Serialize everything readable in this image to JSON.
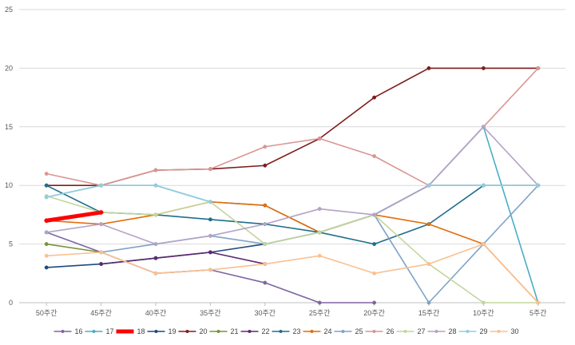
{
  "chart_data": {
    "type": "line",
    "title": "",
    "xlabel": "",
    "ylabel": "",
    "categories": [
      "50주간",
      "45주간",
      "40주간",
      "35주간",
      "30주간",
      "25주간",
      "20주간",
      "15주간",
      "10주간",
      "5주간"
    ],
    "ylim": [
      0,
      25
    ],
    "yticks": [
      "0",
      "5",
      "10",
      "15",
      "20",
      "25"
    ],
    "grid": "horizontal",
    "legend_position": "bottom",
    "series": [
      {
        "name": "16",
        "color": "#8064a2",
        "values": [
          6,
          4.3,
          2.5,
          2.8,
          1.7,
          0,
          0,
          null,
          null,
          null
        ]
      },
      {
        "name": "17",
        "color": "#4bacc6",
        "values": [
          9,
          10,
          10,
          8.6,
          8.3,
          6,
          7.5,
          10,
          15,
          0
        ]
      },
      {
        "name": "18",
        "color": "#ff0000",
        "values": [
          7,
          7.7,
          null,
          null,
          null,
          null,
          null,
          null,
          null,
          null
        ],
        "bold": true
      },
      {
        "name": "19",
        "color": "#1f497d",
        "values": [
          3,
          3.3,
          3.8,
          4.3,
          5,
          6,
          7.5,
          10,
          10,
          10
        ]
      },
      {
        "name": "20",
        "color": "#7f1d1d",
        "values": [
          10,
          10,
          11.3,
          11.4,
          11.7,
          14,
          17.5,
          20,
          20,
          20
        ]
      },
      {
        "name": "21",
        "color": "#77933c",
        "values": [
          5,
          4.3,
          null,
          null,
          null,
          null,
          null,
          null,
          null,
          null
        ]
      },
      {
        "name": "22",
        "color": "#5b2a6e",
        "values": [
          null,
          3.3,
          3.8,
          4.3,
          3.3,
          null,
          null,
          null,
          null,
          null
        ]
      },
      {
        "name": "23",
        "color": "#1f6e8c",
        "values": [
          10,
          7.7,
          7.5,
          7.1,
          6.7,
          6,
          5,
          6.7,
          10,
          null
        ]
      },
      {
        "name": "24",
        "color": "#e36c09",
        "values": [
          7,
          6.7,
          7.5,
          8.6,
          8.3,
          6,
          7.5,
          6.7,
          5,
          0
        ]
      },
      {
        "name": "25",
        "color": "#7fa3c8",
        "values": [
          null,
          4.3,
          5,
          5.7,
          5,
          6,
          7.5,
          0,
          5,
          10
        ]
      },
      {
        "name": "26",
        "color": "#d99694",
        "values": [
          11,
          10,
          11.3,
          11.4,
          13.3,
          14,
          12.5,
          10,
          15,
          20
        ]
      },
      {
        "name": "27",
        "color": "#c3d69b",
        "values": [
          9.1,
          7.7,
          7.5,
          8.6,
          5,
          6,
          7.5,
          3.3,
          0,
          0
        ]
      },
      {
        "name": "28",
        "color": "#b3a2c7",
        "values": [
          6,
          6.7,
          5,
          5.7,
          6.7,
          8,
          7.5,
          10,
          15,
          10
        ]
      },
      {
        "name": "29",
        "color": "#93cddd",
        "values": [
          9,
          10,
          10,
          8.6,
          null,
          null,
          null,
          10,
          10,
          10
        ]
      },
      {
        "name": "30",
        "color": "#fac090",
        "values": [
          4,
          4.3,
          2.5,
          2.8,
          3.3,
          4,
          2.5,
          3.3,
          5,
          0
        ]
      }
    ]
  }
}
